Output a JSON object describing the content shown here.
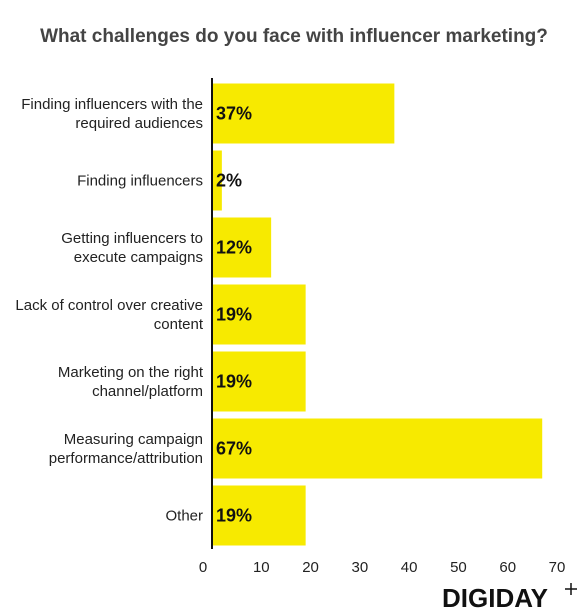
{
  "chart_data": {
    "type": "bar",
    "orientation": "horizontal",
    "title": "What challenges do you face with influencer marketing?",
    "categories": [
      "Finding influencers with the required audiences",
      "Finding influencers",
      "Getting influencers to execute campaigns",
      "Lack of control over creative content",
      "Marketing on the right channel/platform",
      "Measuring campaign performance/attribution",
      "Other"
    ],
    "values": [
      37,
      2,
      12,
      19,
      19,
      67,
      19
    ],
    "value_labels": [
      "37%",
      "2%",
      "12%",
      "19%",
      "19%",
      "67%",
      "19%"
    ],
    "color": "#f7ea00",
    "xlim": [
      0,
      70
    ],
    "xticks": [
      0,
      10,
      20,
      30,
      40,
      50,
      60,
      70
    ],
    "logo": "DIGIDAY"
  }
}
